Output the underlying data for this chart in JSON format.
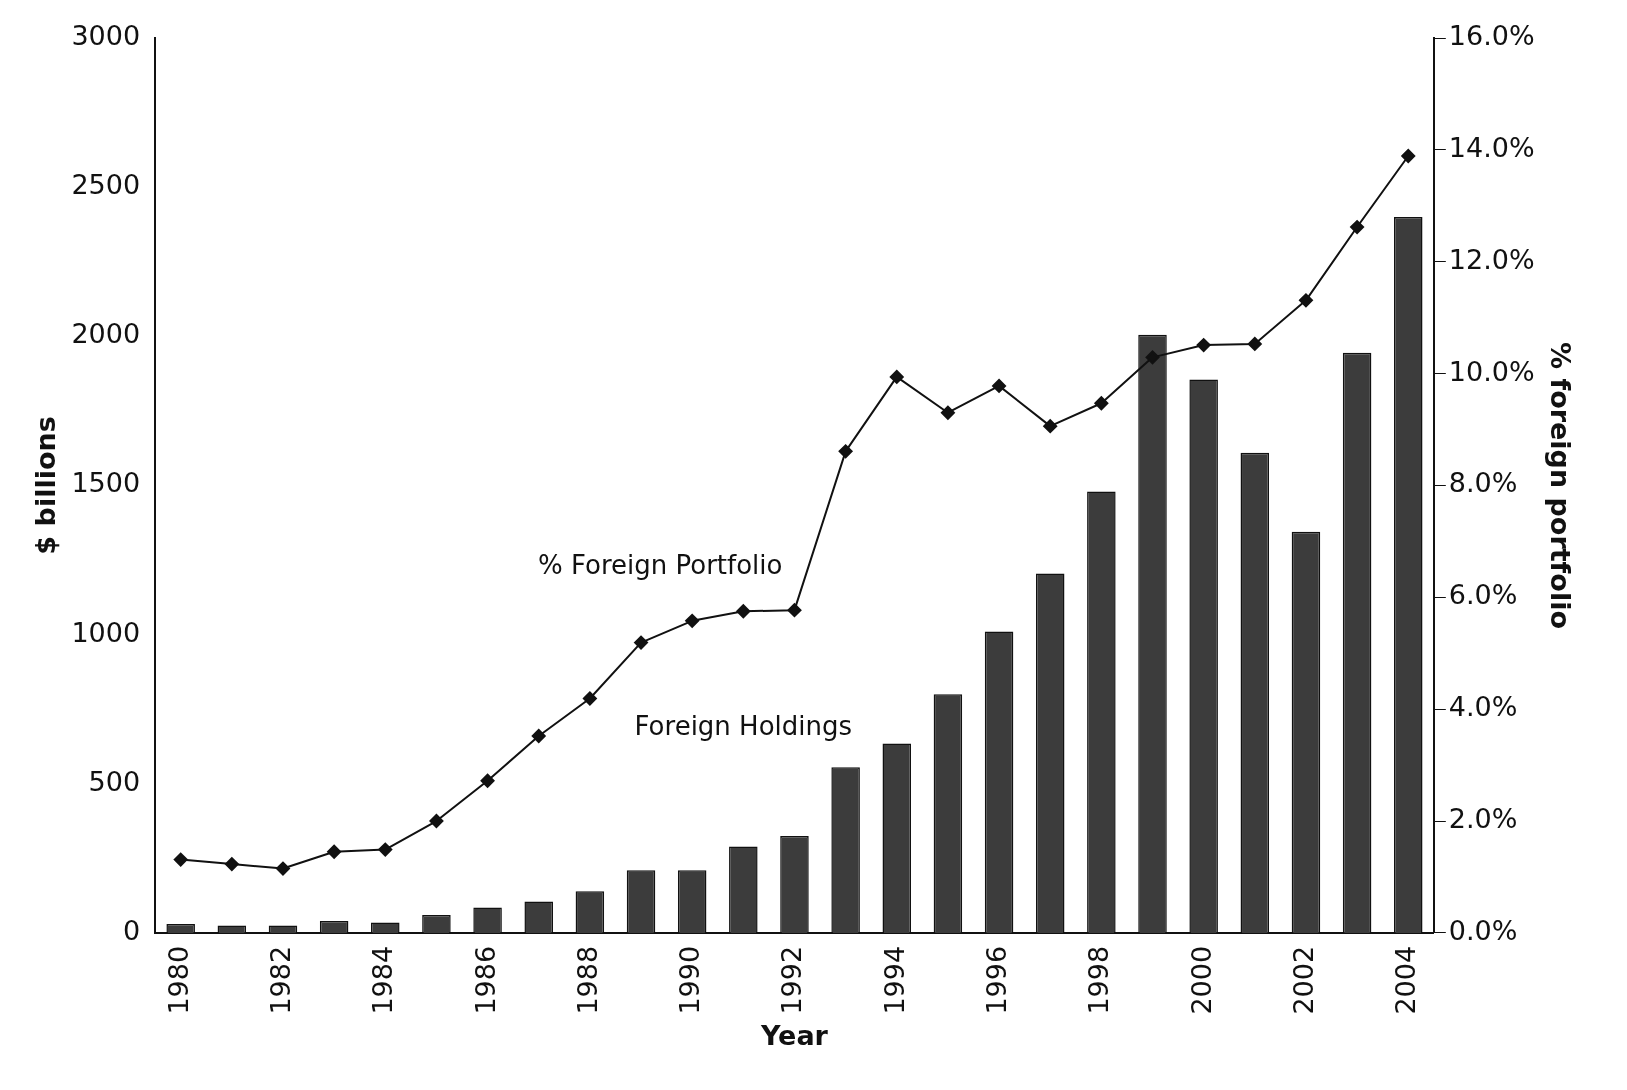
{
  "chart_data": {
    "type": "bar",
    "xlabel": "Year",
    "ylabel": "$ billions",
    "y2label": "% foreign portfolio",
    "categories": [
      "1980",
      null,
      "1982",
      null,
      "1984",
      null,
      "1986",
      null,
      "1988",
      null,
      "1990",
      null,
      "1992",
      null,
      "1994",
      null,
      "1996",
      null,
      "1998",
      null,
      "2000",
      null,
      "2002",
      null,
      "2004"
    ],
    "series": [
      {
        "name": "Foreign Holdings",
        "color": "#3c3c3c",
        "values": [
          30,
          25,
          25,
          40,
          35,
          60,
          85,
          105,
          140,
          210,
          210,
          290,
          325,
          555,
          635,
          800,
          1010,
          1205,
          1480,
          2005,
          1855,
          1610,
          1345,
          1945,
          2400
        ]
      },
      {
        "name": "% Foreign Portfolio",
        "type": "line",
        "axis": "y2",
        "color": "#111111",
        "marker": "diamond",
        "values": [
          1.31,
          1.23,
          1.15,
          1.45,
          1.49,
          2.0,
          2.72,
          3.52,
          4.19,
          5.19,
          5.58,
          5.75,
          5.77,
          8.61,
          9.94,
          9.3,
          9.78,
          9.06,
          9.47,
          10.29,
          10.51,
          10.53,
          11.31,
          12.62,
          13.89
        ]
      }
    ],
    "ylim": [
      0,
      3000
    ],
    "yticks": [
      0,
      500,
      1000,
      1500,
      2000,
      2500,
      3000
    ],
    "y2lim": [
      0,
      16
    ],
    "y2ticks": [
      {
        "value": 0,
        "label": "0.0%"
      },
      {
        "value": 2,
        "label": "2.0%"
      },
      {
        "value": 4,
        "label": "4.0%"
      },
      {
        "value": 6,
        "label": "6.0%"
      },
      {
        "value": 8,
        "label": "8.0%"
      },
      {
        "value": 10,
        "label": "10.0%"
      },
      {
        "value": 12,
        "label": "12.0%"
      },
      {
        "value": 14,
        "label": "14.0%"
      },
      {
        "value": 16,
        "label": "16.0%"
      }
    ],
    "grid": false,
    "legend": false
  }
}
